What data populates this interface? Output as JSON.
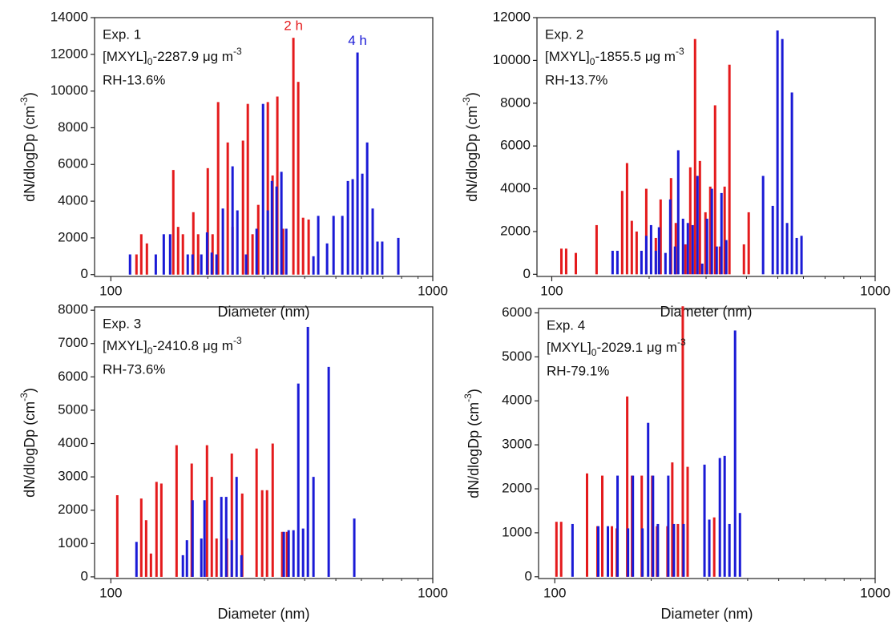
{
  "chart_data": [
    {
      "type": "bar",
      "xlog": true,
      "xlim": [
        89,
        1000
      ],
      "xticks": [
        100,
        1000
      ],
      "xminor_ticks": [
        200,
        300,
        400,
        500,
        600,
        700,
        800,
        900
      ],
      "ylim": [
        -100,
        14000
      ],
      "yticks": [
        0,
        2000,
        4000,
        6000,
        8000,
        10000,
        12000,
        14000
      ],
      "xlabel": "Diameter (nm)",
      "ylabel": {
        "text": "dN/dlogDp (cm",
        "sup": "-3",
        "end": ")"
      },
      "annotation": {
        "exp": "Exp. 1",
        "conc": {
          "base": "[MXYL]",
          "sub": "0",
          "text": "-2287.9 μg m",
          "sup": "-3"
        },
        "rh": "RH-13.6%"
      },
      "series": [
        {
          "name": "2 h",
          "color": "#e41a1c",
          "x": [
            120.1,
            124.3,
            129.4,
            156.3,
            161.8,
            167.4,
            180.4,
            186.7,
            200.0,
            207.0,
            215.4,
            230.7,
            238.8,
            257.3,
            266.3,
            275.5,
            287.0,
            307.3,
            318.0,
            329.0,
            342.7,
            369.0,
            382.0,
            395.5,
            411.5
          ],
          "values": [
            1100,
            2200,
            1700,
            5700,
            2600,
            2200,
            3400,
            2200,
            5800,
            2200,
            9400,
            7200,
            2600,
            7300,
            9300,
            2200,
            3800,
            9400,
            5400,
            9700,
            2500,
            12900,
            10500,
            3100,
            3000
          ]
        },
        {
          "name": "4 h",
          "color": "#1a1ad6",
          "x": [
            114.7,
            137.9,
            146.0,
            152.8,
            173.3,
            179.4,
            191.0,
            199.0,
            205.8,
            212.9,
            222.8,
            238.8,
            247.2,
            263.1,
            283.6,
            297.0,
            307.3,
            316.4,
            327.2,
            338.7,
            350.7,
            425.9,
            440.8,
            469.6,
            491.8,
            523.7,
            545.0,
            563.9,
            583.7,
            604.1,
            625.5,
            650.6,
            673.3,
            696.6,
            781.6
          ],
          "values": [
            1100,
            1100,
            2200,
            2200,
            1100,
            1100,
            1100,
            2300,
            1200,
            1100,
            3600,
            5900,
            3500,
            1100,
            2500,
            9300,
            3500,
            5100,
            4800,
            5600,
            2500,
            1000,
            3200,
            1700,
            3200,
            3200,
            5100,
            5200,
            12100,
            5500,
            7200,
            3600,
            1800,
            1800,
            2000
          ]
        }
      ]
    },
    {
      "type": "bar",
      "xlog": true,
      "xlim": [
        90,
        1000
      ],
      "xticks": [
        100,
        1000
      ],
      "xminor_ticks": [
        200,
        300,
        400,
        500,
        600,
        700,
        800,
        900
      ],
      "ylim": [
        -100,
        12000
      ],
      "yticks": [
        0,
        2000,
        4000,
        6000,
        8000,
        10000,
        12000
      ],
      "xlabel": "Diameter (nm)",
      "ylabel": {
        "text": "dN/dlogDp (cm",
        "sup": "-3",
        "end": ")"
      },
      "annotation": {
        "exp": "Exp. 2",
        "conc": {
          "base": "[MXYL]",
          "sub": "0",
          "text": "-1855.5 μg m",
          "sup": "-3"
        },
        "rh": "RH-13.7%"
      },
      "series": [
        {
          "color": "#e41a1c",
          "x": [
            107.1,
            110.8,
            118.7,
            137.6,
            165.1,
            170.9,
            176.8,
            183.0,
            196.0,
            209.8,
            217.1,
            233.8,
            241.9,
            259.1,
            268.1,
            277.4,
            287.1,
            298.7,
            309.1,
            319.9,
            331.0,
            342.4,
            354.3,
            392.8,
            406.4
          ],
          "values": [
            1200,
            1200,
            1000,
            2300,
            3900,
            5200,
            2500,
            2000,
            4000,
            1700,
            3500,
            4500,
            2400,
            1400,
            5000,
            11000,
            5300,
            2900,
            4100,
            7900,
            1300,
            4100,
            9800,
            1400,
            2900
          ]
        },
        {
          "color": "#1a1ad6",
          "x": [
            154.2,
            159.6,
            189.4,
            196.0,
            202.8,
            209.8,
            214.6,
            224.7,
            232.5,
            240.5,
            246.1,
            254.6,
            263.5,
            272.7,
            282.2,
            292.0,
            302.1,
            312.6,
            323.6,
            334.8,
            346.4,
            450.3,
            482.3,
            498.9,
            516.3,
            534.2,
            552.8,
            572.0,
            591.9
          ],
          "values": [
            1100,
            1100,
            1100,
            1800,
            2300,
            1100,
            2200,
            1000,
            3500,
            1300,
            5800,
            2600,
            2400,
            2300,
            4600,
            500,
            2600,
            4000,
            1300,
            3800,
            1600,
            4600,
            3200,
            11400,
            11000,
            2400,
            8500,
            1700,
            1800
          ]
        }
      ]
    },
    {
      "type": "bar",
      "xlog": true,
      "xlim": [
        89,
        1000
      ],
      "xticks": [
        100,
        1000
      ],
      "xminor_ticks": [
        200,
        300,
        400,
        500,
        600,
        700,
        800,
        900
      ],
      "ylim": [
        -50,
        8100
      ],
      "yticks": [
        0,
        1000,
        2000,
        3000,
        4000,
        5000,
        6000,
        7000,
        8000
      ],
      "xlabel": "Diameter (nm)",
      "ylabel": {
        "text": "dN/dlogDp (cm",
        "sup": "-3",
        "end": ")"
      },
      "annotation": {
        "exp": "Exp. 3",
        "conc": {
          "base": "[MXYL]",
          "sub": "0",
          "text": "-2410.8 μg m",
          "sup": "-3"
        },
        "rh": "RH-73.6%"
      },
      "series": [
        {
          "color": "#e41a1c",
          "x": [
            104.7,
            124.3,
            128.7,
            133.2,
            138.6,
            143.5,
            160.0,
            178.3,
            198.9,
            205.8,
            213.0,
            229.4,
            237.5,
            255.9,
            283.6,
            295.2,
            305.6,
            318.2,
            340.7,
            352.6
          ],
          "values": [
            2450,
            2350,
            1700,
            700,
            2850,
            2800,
            3950,
            3400,
            3950,
            3000,
            1150,
            1150,
            3700,
            2500,
            3850,
            2600,
            2600,
            4000,
            1350,
            1350
          ]
        },
        {
          "color": "#1a1ad6",
          "x": [
            120.1,
            167.4,
            172.3,
            179.4,
            191.0,
            195.4,
            220.4,
            228.2,
            237.5,
            245.8,
            254.5,
            344.6,
            356.7,
            369.2,
            382.2,
            395.5,
            409.3,
            426.0,
            475.0,
            570.4
          ],
          "values": [
            1050,
            650,
            1100,
            2300,
            1150,
            2300,
            2400,
            2400,
            1100,
            3000,
            650,
            1350,
            1400,
            1400,
            5800,
            1450,
            7500,
            3000,
            6300,
            1750
          ]
        }
      ]
    },
    {
      "type": "bar",
      "xlog": true,
      "xlim": [
        89,
        1000
      ],
      "xticks": [
        100,
        1000
      ],
      "xminor_ticks": [
        200,
        300,
        400,
        500,
        600,
        700,
        800,
        900
      ],
      "ylim": [
        -40,
        6100
      ],
      "yticks": [
        0,
        1000,
        2000,
        3000,
        4000,
        5000,
        6000
      ],
      "xlabel": "Diameter (nm)",
      "ylabel": {
        "text": "dN/dlogDp (cm",
        "sup": "-3",
        "end": ")"
      },
      "annotation": {
        "exp": "Exp. 4",
        "conc": {
          "base": "[MXYL]",
          "sub": "0",
          "text": "-2029.1 μg m",
          "sup": "-3"
        },
        "rh": "RH-79.1%"
      },
      "series": [
        {
          "color": "#e41a1c",
          "x": [
            101.2,
            104.7,
            126.1,
            135.9,
            140.7,
            150.8,
            156.1,
            168.3,
            174.2,
            186.8,
            201.4,
            208.5,
            224.8,
            232.7,
            242.3,
            250.9,
            259.8,
            314.5
          ],
          "values": [
            1250,
            1250,
            2350,
            1150,
            2300,
            1150,
            1100,
            4100,
            2300,
            2300,
            2300,
            1150,
            1150,
            2600,
            1200,
            6150,
            2500,
            1350
          ]
        },
        {
          "color": "#1a1ad6",
          "x": [
            113.6,
            136.7,
            146.5,
            157.0,
            169.3,
            175.3,
            187.8,
            195.6,
            202.6,
            209.8,
            226.1,
            235.4,
            252.4,
            293.3,
            303.6,
            327.5,
            339.0,
            350.9,
            365.4,
            378.4
          ],
          "values": [
            1200,
            1150,
            1150,
            2300,
            1100,
            2300,
            1100,
            3500,
            2300,
            1200,
            2300,
            1200,
            1200,
            2550,
            1300,
            2700,
            2750,
            1200,
            5600,
            1450
          ]
        }
      ]
    }
  ]
}
